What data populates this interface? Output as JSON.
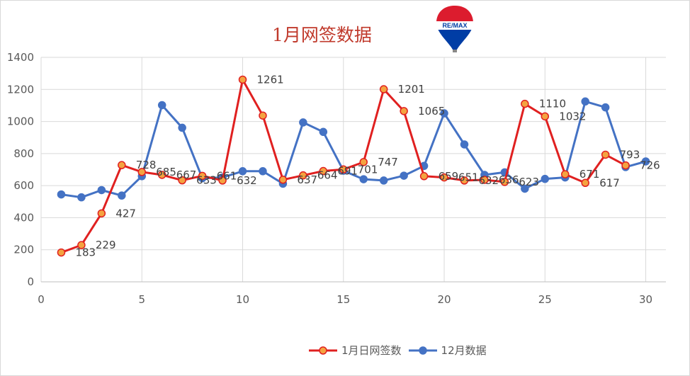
{
  "chart_data": {
    "type": "line",
    "title": "1月网签数据",
    "xlim": [
      0,
      31
    ],
    "ylim": [
      0,
      1400
    ],
    "xticks": [
      0,
      5,
      10,
      15,
      20,
      25,
      30
    ],
    "yticks": [
      0,
      200,
      400,
      600,
      800,
      1000,
      1200,
      1400
    ],
    "grid": true,
    "legend": "bottom",
    "series": [
      {
        "name": "1月日网签数",
        "color": "#e02020",
        "marker_fill": "#f4a340",
        "x": [
          1,
          2,
          3,
          4,
          5,
          6,
          7,
          8,
          9,
          10,
          11,
          12,
          13,
          14,
          15,
          16,
          17,
          18,
          19,
          20,
          21,
          22,
          23,
          24,
          25,
          26,
          27,
          28,
          29
        ],
        "values": [
          183,
          229,
          427,
          728,
          685,
          667,
          633,
          661,
          632,
          1261,
          1037,
          637,
          664,
          691,
          701,
          747,
          1201,
          1065,
          659,
          651,
          632,
          636,
          623,
          1110,
          1032,
          671,
          617,
          793,
          726
        ],
        "labels": [
          "183",
          "229",
          "427",
          "728",
          "685",
          "667",
          "633",
          "661",
          "632",
          "1261",
          "",
          "637",
          "664",
          "691",
          "701",
          "747",
          "1201",
          "1065",
          "659",
          "651",
          "632",
          "636",
          "623",
          "1110",
          "1032",
          "671",
          "617",
          "793",
          "726"
        ]
      },
      {
        "name": "12月数据",
        "color": "#4472c4",
        "marker_fill": "#4472c4",
        "x": [
          1,
          2,
          3,
          4,
          5,
          6,
          7,
          8,
          9,
          10,
          11,
          12,
          13,
          14,
          15,
          16,
          17,
          18,
          19,
          20,
          21,
          22,
          23,
          24,
          25,
          26,
          27,
          28,
          29,
          30
        ],
        "values": [
          545,
          527,
          572,
          538,
          659,
          1102,
          961,
          646,
          651,
          690,
          690,
          612,
          994,
          935,
          693,
          640,
          632,
          662,
          723,
          1051,
          857,
          667,
          683,
          581,
          642,
          651,
          1125,
          1088,
          716,
          751
        ]
      }
    ]
  },
  "logo": {
    "text": "RE/MAX",
    "colors": {
      "red": "#dc1c2e",
      "blue": "#003da5"
    }
  }
}
